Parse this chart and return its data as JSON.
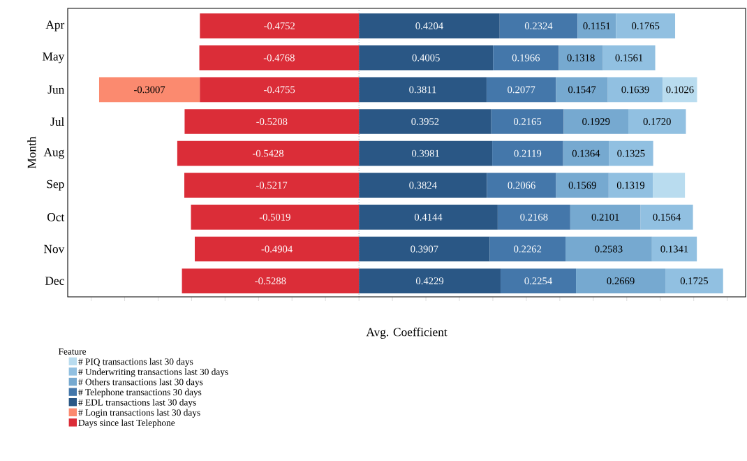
{
  "chart_data": {
    "type": "bar",
    "orientation": "horizontal",
    "stacked": true,
    "xlabel": "Avg. Coefficient",
    "ylabel": "Month",
    "legend_title": "Feature",
    "legend": "bottom left",
    "tick_labels": "y",
    "categories": [
      "Apr",
      "May",
      "Jun",
      "Jul",
      "Aug",
      "Sep",
      "Oct",
      "Nov",
      "Dec"
    ],
    "xlim": [
      -0.87,
      1.155
    ],
    "xticks": [
      {
        "value": -0.8,
        "label": null
      },
      {
        "value": -0.7,
        "label": null
      },
      {
        "value": -0.6,
        "label": null
      },
      {
        "value": -0.5,
        "label": null
      },
      {
        "value": -0.4,
        "label": null
      },
      {
        "value": -0.3,
        "label": null
      },
      {
        "value": -0.2,
        "label": null
      },
      {
        "value": -0.1,
        "label": null
      },
      {
        "value": 0,
        "label": null
      },
      {
        "value": 0.1,
        "label": null
      },
      {
        "value": 0.2,
        "label": null
      },
      {
        "value": 0.3,
        "label": null
      },
      {
        "value": 0.4,
        "label": null
      },
      {
        "value": 0.5,
        "label": null
      },
      {
        "value": 0.6,
        "label": null
      },
      {
        "value": 0.7,
        "label": null
      },
      {
        "value": 0.8,
        "label": null
      },
      {
        "value": 0.9,
        "label": null
      },
      {
        "value": 1.0,
        "label": null
      },
      {
        "value": 1.1,
        "label": null
      }
    ],
    "ref_lines": [
      {
        "axis": "x",
        "value": 0,
        "color": "#555555",
        "line_style": "dotted"
      }
    ],
    "series": [
      {
        "name": "Days since last Telephone",
        "color": "#db2d38",
        "values": [
          -0.4752,
          -0.4768,
          -0.4755,
          -0.5208,
          -0.5428,
          -0.5217,
          -0.5019,
          -0.4904,
          -0.5288
        ],
        "value_labels": [
          "-0.4752",
          "-0.4768",
          "-0.4755",
          "-0.5208",
          "-0.5428",
          "-0.5217",
          "-0.5019",
          "-0.4904",
          "-0.5288"
        ]
      },
      {
        "name": "# Login transactions last 30 days",
        "color": "#fb8a6f",
        "values": [
          null,
          null,
          -0.3007,
          null,
          null,
          null,
          null,
          null,
          null
        ],
        "value_labels": [
          null,
          null,
          "-0.3007",
          null,
          null,
          null,
          null,
          null,
          null
        ]
      },
      {
        "name": "# EDL transactions last 30 days",
        "color": "#2a5785",
        "values": [
          0.4204,
          0.4005,
          0.3811,
          0.3952,
          0.3981,
          0.3824,
          0.4144,
          0.3907,
          0.4229
        ],
        "value_labels": [
          "0.4204",
          "0.4005",
          "0.3811",
          "0.3952",
          "0.3981",
          "0.3824",
          "0.4144",
          "0.3907",
          "0.4229"
        ]
      },
      {
        "name": "# Telephone transactions 30 days",
        "color": "#4477aa",
        "values": [
          0.2324,
          0.1966,
          0.2077,
          0.2165,
          0.2119,
          0.2066,
          0.2168,
          0.2262,
          0.2254
        ],
        "value_labels": [
          "0.2324",
          "0.1966",
          "0.2077",
          "0.2165",
          "0.2119",
          "0.2066",
          "0.2168",
          "0.2262",
          "0.2254"
        ]
      },
      {
        "name": "# Others transactions last 30 days",
        "color": "#76a9d0",
        "values": [
          0.1151,
          0.1318,
          0.1547,
          0.1929,
          0.1364,
          0.1569,
          0.2101,
          0.2583,
          0.2669
        ],
        "value_labels": [
          "0.1151",
          "0.1318",
          "0.1547",
          "0.1929",
          "0.1364",
          "0.1569",
          "0.2101",
          "0.2583",
          "0.2669"
        ]
      },
      {
        "name": "# Underwriting transactions last 30 days",
        "color": "#91c0e1",
        "values": [
          0.1765,
          0.1561,
          0.1639,
          0.172,
          0.1325,
          0.1319,
          0.1564,
          0.1341,
          0.1725
        ],
        "value_labels": [
          "0.1765",
          "0.1561",
          "0.1639",
          "0.1720",
          "0.1325",
          "0.1319",
          "0.1564",
          "0.1341",
          "0.1725"
        ]
      },
      {
        "name": "# PIQ transactions last 30 days",
        "color": "#b9dcef",
        "values": [
          null,
          null,
          0.1026,
          null,
          null,
          0.096,
          null,
          null,
          null
        ],
        "value_labels": [
          null,
          null,
          "0.1026",
          null,
          null,
          null,
          null,
          null,
          null
        ]
      }
    ]
  }
}
